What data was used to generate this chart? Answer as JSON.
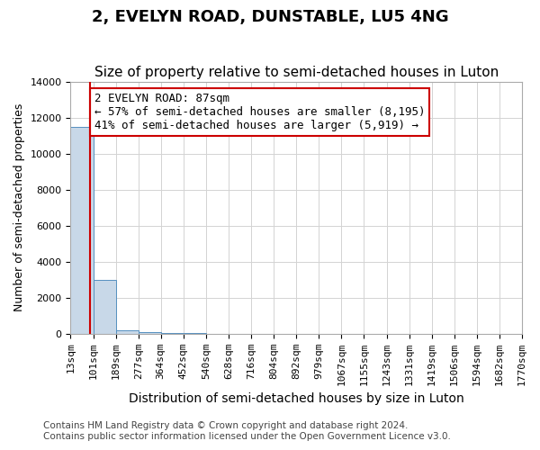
{
  "title": "2, EVELYN ROAD, DUNSTABLE, LU5 4NG",
  "subtitle": "Size of property relative to semi-detached houses in Luton",
  "xlabel": "Distribution of semi-detached houses by size in Luton",
  "ylabel": "Number of semi-detached properties",
  "bin_labels": [
    "13sqm",
    "101sqm",
    "189sqm",
    "277sqm",
    "364sqm",
    "452sqm",
    "540sqm",
    "628sqm",
    "716sqm",
    "804sqm",
    "892sqm",
    "979sqm",
    "1067sqm",
    "1155sqm",
    "1243sqm",
    "1331sqm",
    "1419sqm",
    "1506sqm",
    "1594sqm",
    "1682sqm",
    "1770sqm"
  ],
  "bin_edges": [
    13,
    101,
    189,
    277,
    364,
    452,
    540,
    628,
    716,
    804,
    892,
    979,
    1067,
    1155,
    1243,
    1331,
    1419,
    1506,
    1594,
    1682,
    1770
  ],
  "bar_heights": [
    11500,
    3000,
    200,
    80,
    30,
    10,
    5,
    2,
    1,
    1,
    1,
    0,
    0,
    0,
    0,
    0,
    0,
    0,
    0,
    0
  ],
  "bar_color": "#c8d8e8",
  "bar_edge_color": "#5590c0",
  "property_size": 87,
  "vline_color": "#cc0000",
  "annotation_text": "2 EVELYN ROAD: 87sqm\n← 57% of semi-detached houses are smaller (8,195)\n41% of semi-detached houses are larger (5,919) →",
  "annotation_box_color": "#ffffff",
  "annotation_box_edge": "#cc0000",
  "ylim": [
    0,
    14000
  ],
  "yticks": [
    0,
    2000,
    4000,
    6000,
    8000,
    10000,
    12000,
    14000
  ],
  "footer_line1": "Contains HM Land Registry data © Crown copyright and database right 2024.",
  "footer_line2": "Contains public sector information licensed under the Open Government Licence v3.0.",
  "title_fontsize": 13,
  "subtitle_fontsize": 11,
  "axis_label_fontsize": 9,
  "tick_fontsize": 8,
  "annotation_fontsize": 9,
  "footer_fontsize": 7.5
}
